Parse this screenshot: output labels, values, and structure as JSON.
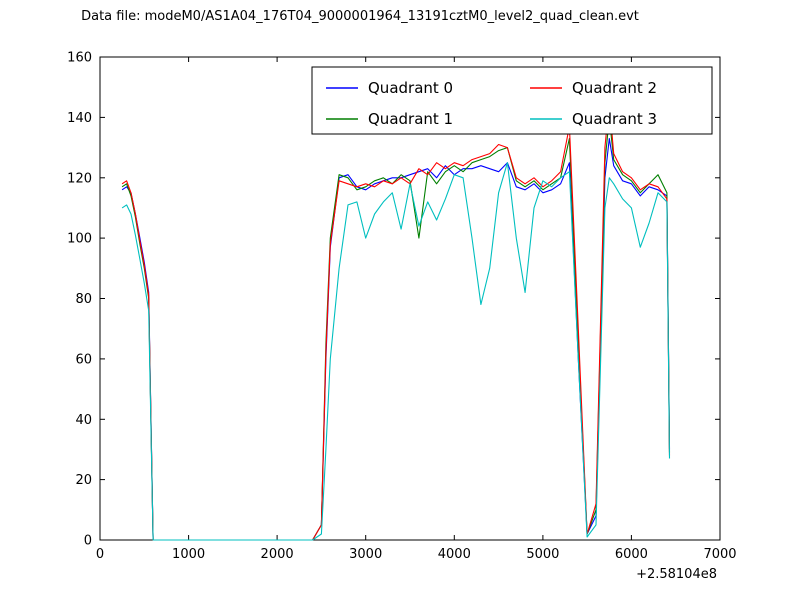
{
  "title": "Data file: modeM0/AS1A04_176T04_9000001964_13191cztM0_level2_quad_clean.evt",
  "chart_data": {
    "type": "line",
    "title": "Data file: modeM0/AS1A04_176T04_9000001964_13191cztM0_level2_quad_clean.evt",
    "xlabel": "",
    "ylabel": "",
    "xlim": [
      0,
      7000
    ],
    "ylim": [
      0,
      160
    ],
    "xticks": [
      0,
      1000,
      2000,
      3000,
      4000,
      5000,
      6000,
      7000
    ],
    "yticks": [
      0,
      20,
      40,
      60,
      80,
      100,
      120,
      140,
      160
    ],
    "x_offset_label": "+2.58104e8",
    "grid": false,
    "legend": {
      "position": "upper center",
      "columns": 2
    },
    "x": [
      250,
      300,
      350,
      400,
      450,
      500,
      550,
      600,
      700,
      1000,
      1500,
      2000,
      2400,
      2500,
      2550,
      2600,
      2700,
      2800,
      2900,
      3000,
      3100,
      3200,
      3300,
      3400,
      3500,
      3600,
      3700,
      3800,
      3900,
      4000,
      4100,
      4200,
      4300,
      4400,
      4500,
      4600,
      4700,
      4800,
      4900,
      5000,
      5100,
      5200,
      5300,
      5400,
      5500,
      5600,
      5700,
      5750,
      5800,
      5900,
      6000,
      6100,
      6200,
      6300,
      6400,
      6430
    ],
    "series": [
      {
        "name": "Quadrant 0",
        "color": "#0000ff",
        "values": [
          116,
          117,
          115,
          108,
          100,
          92,
          82,
          0,
          0,
          0,
          0,
          0,
          0,
          5,
          60,
          97,
          120,
          121,
          117,
          116,
          118,
          119,
          120,
          120,
          121,
          122,
          123,
          120,
          124,
          121,
          123,
          123,
          124,
          123,
          122,
          125,
          117,
          116,
          118,
          115,
          116,
          118,
          125,
          60,
          2,
          8,
          120,
          133,
          124,
          119,
          118,
          114,
          117,
          116,
          114,
          30
        ]
      },
      {
        "name": "Quadrant 1",
        "color": "#007f00",
        "values": [
          117,
          118,
          114,
          107,
          98,
          90,
          80,
          0,
          0,
          0,
          0,
          0,
          0,
          5,
          65,
          100,
          121,
          120,
          116,
          117,
          119,
          120,
          118,
          121,
          119,
          100,
          122,
          118,
          122,
          124,
          122,
          125,
          126,
          127,
          129,
          130,
          119,
          117,
          119,
          116,
          118,
          120,
          133,
          65,
          2,
          10,
          125,
          140,
          126,
          121,
          119,
          115,
          118,
          121,
          115,
          29
        ]
      },
      {
        "name": "Quadrant 2",
        "color": "#ff0000",
        "values": [
          118,
          119,
          115,
          108,
          99,
          91,
          81,
          0,
          0,
          0,
          0,
          0,
          0,
          5,
          62,
          98,
          119,
          118,
          117,
          118,
          117,
          119,
          118,
          120,
          118,
          123,
          121,
          125,
          123,
          125,
          124,
          126,
          127,
          128,
          131,
          130,
          120,
          118,
          120,
          117,
          119,
          122,
          137,
          70,
          2,
          12,
          130,
          145,
          128,
          122,
          120,
          116,
          118,
          117,
          113,
          28
        ]
      },
      {
        "name": "Quadrant 3",
        "color": "#00bfbf",
        "values": [
          110,
          111,
          108,
          101,
          93,
          85,
          76,
          0,
          0,
          0,
          0,
          0,
          0,
          2,
          30,
          60,
          90,
          111,
          112,
          100,
          108,
          112,
          115,
          103,
          118,
          104,
          112,
          106,
          113,
          121,
          120,
          100,
          78,
          90,
          115,
          125,
          100,
          82,
          110,
          119,
          117,
          120,
          122,
          60,
          1,
          5,
          110,
          120,
          118,
          113,
          110,
          97,
          105,
          115,
          112,
          27
        ]
      }
    ]
  }
}
